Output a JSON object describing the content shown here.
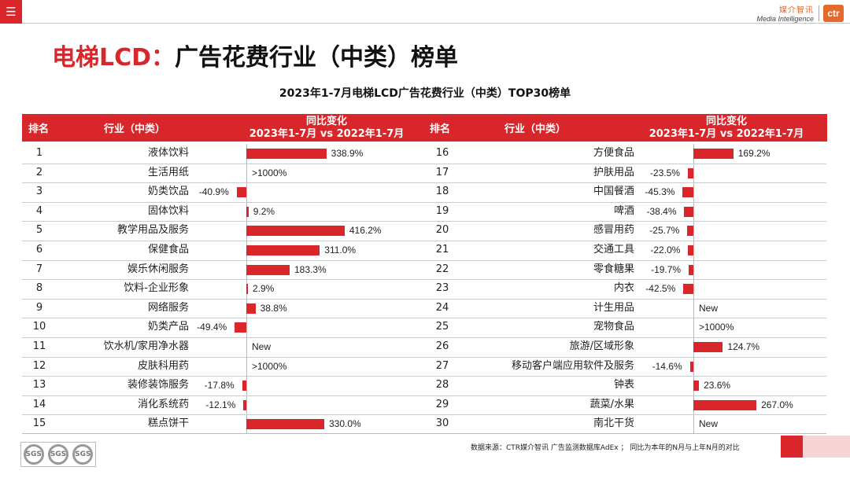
{
  "header": {
    "menu_icon": "hamburger-menu-icon",
    "logo_cn": "媒介智讯",
    "logo_en": "Media Intelligence",
    "logo_badge": "ctr"
  },
  "page_title_red": "电梯LCD：",
  "page_title_black": "广告花费行业（中类）榜单",
  "columns": {
    "rank": "排名",
    "industry": "行业（中类）",
    "change_line1": "同比变化",
    "change_line2": "2023年1-7月 vs 2022年1-7月"
  },
  "chart_data": {
    "type": "bar",
    "title": "2023年1-7月电梯LCD广告花费行业（中类）TOP30榜单",
    "xlabel": "同比变化 2023年1-7月 vs 2022年1-7月",
    "unit": "%",
    "colors": {
      "bar": "#d9262b"
    },
    "rows": [
      {
        "rank": "1",
        "industry": "液体饮料",
        "value": 338.9,
        "label": "338.9%"
      },
      {
        "rank": "2",
        "industry": "生活用纸",
        "value": null,
        "label": ">1000%"
      },
      {
        "rank": "3",
        "industry": "奶类饮品",
        "value": -40.9,
        "label": "-40.9%"
      },
      {
        "rank": "4",
        "industry": "固体饮料",
        "value": 9.2,
        "label": "9.2%"
      },
      {
        "rank": "5",
        "industry": "教学用品及服务",
        "value": 416.2,
        "label": "416.2%"
      },
      {
        "rank": "6",
        "industry": "保健食品",
        "value": 311.0,
        "label": "311.0%"
      },
      {
        "rank": "7",
        "industry": "娱乐休闲服务",
        "value": 183.3,
        "label": "183.3%"
      },
      {
        "rank": "8",
        "industry": "饮料-企业形象",
        "value": 2.9,
        "label": "2.9%"
      },
      {
        "rank": "9",
        "industry": "网络服务",
        "value": 38.8,
        "label": "38.8%"
      },
      {
        "rank": "10",
        "industry": "奶类产品",
        "value": -49.4,
        "label": "-49.4%"
      },
      {
        "rank": "11",
        "industry": "饮水机/家用净水器",
        "value": null,
        "label": "New"
      },
      {
        "rank": "12",
        "industry": "皮肤科用药",
        "value": null,
        "label": ">1000%"
      },
      {
        "rank": "13",
        "industry": "装修装饰服务",
        "value": -17.8,
        "label": "-17.8%"
      },
      {
        "rank": "14",
        "industry": "消化系统药",
        "value": -12.1,
        "label": "-12.1%"
      },
      {
        "rank": "15",
        "industry": "糕点饼干",
        "value": 330.0,
        "label": "330.0%"
      },
      {
        "rank": "16",
        "industry": "方便食品",
        "value": 169.2,
        "label": "169.2%"
      },
      {
        "rank": "17",
        "industry": "护肤用品",
        "value": -23.5,
        "label": "-23.5%"
      },
      {
        "rank": "18",
        "industry": "中国餐酒",
        "value": -45.3,
        "label": "-45.3%"
      },
      {
        "rank": "19",
        "industry": "啤酒",
        "value": -38.4,
        "label": "-38.4%"
      },
      {
        "rank": "20",
        "industry": "感冒用药",
        "value": -25.7,
        "label": "-25.7%"
      },
      {
        "rank": "21",
        "industry": "交通工具",
        "value": -22.0,
        "label": "-22.0%"
      },
      {
        "rank": "22",
        "industry": "零食糖果",
        "value": -19.7,
        "label": "-19.7%"
      },
      {
        "rank": "23",
        "industry": "内衣",
        "value": -42.5,
        "label": "-42.5%"
      },
      {
        "rank": "24",
        "industry": "计生用品",
        "value": null,
        "label": "New"
      },
      {
        "rank": "25",
        "industry": "宠物食品",
        "value": null,
        "label": ">1000%"
      },
      {
        "rank": "26",
        "industry": "旅游/区域形象",
        "value": 124.7,
        "label": "124.7%"
      },
      {
        "rank": "27",
        "industry": "移动客户端应用软件及服务",
        "value": -14.6,
        "label": "-14.6%"
      },
      {
        "rank": "28",
        "industry": "钟表",
        "value": 23.6,
        "label": "23.6%"
      },
      {
        "rank": "29",
        "industry": "蔬菜/水果",
        "value": 267.0,
        "label": "267.0%"
      },
      {
        "rank": "30",
        "industry": "南北干货",
        "value": null,
        "label": "New"
      }
    ]
  },
  "footer": {
    "source": "数据来源：CTR媒介智讯 广告监测数据库AdEx ； 同比为本年的N月与上年N月的对比",
    "cert_label": "SGS"
  }
}
